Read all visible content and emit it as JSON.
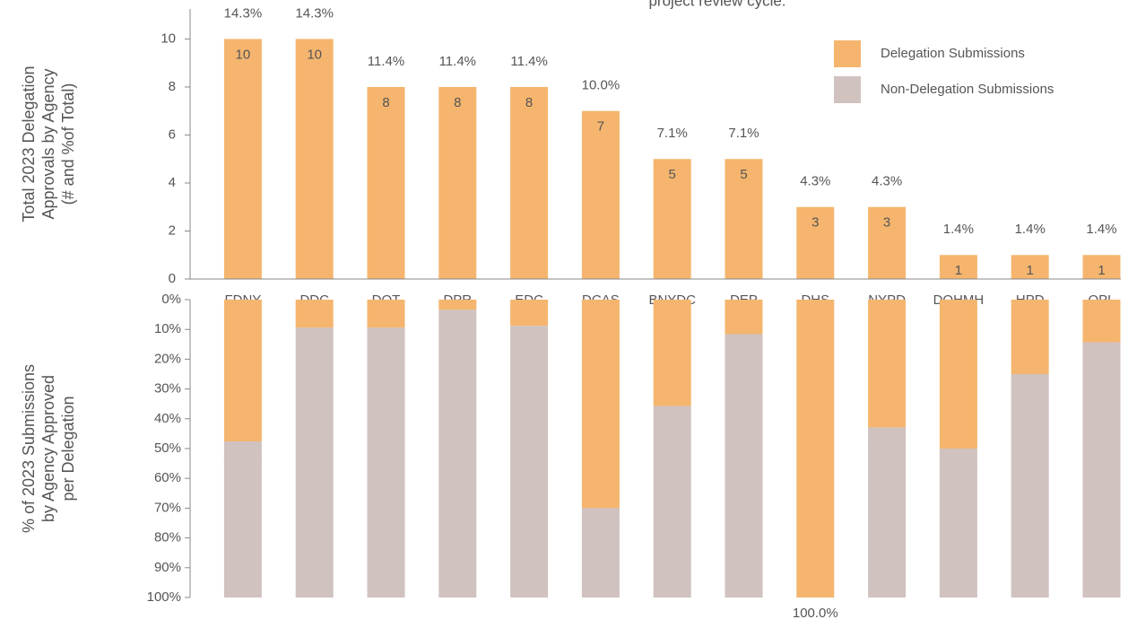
{
  "chart_data": [
    {
      "type": "bar",
      "annotation": "project review cycle.",
      "y_label": [
        "Total 2023 Delegation",
        "Approvals by Agency",
        "(# and %of Total)"
      ],
      "categories": [
        "FDNY",
        "DDC",
        "DOT",
        "DPR",
        "EDC",
        "DCAS",
        "BNYDC",
        "DEP",
        "DHS",
        "NYPD",
        "DOHMH",
        "HPD",
        "QPL"
      ],
      "values": [
        10,
        10,
        8,
        8,
        8,
        7,
        5,
        5,
        3,
        3,
        1,
        1,
        1
      ],
      "percent_labels": [
        "14.3%",
        "14.3%",
        "11.4%",
        "11.4%",
        "11.4%",
        "10.0%",
        "7.1%",
        "7.1%",
        "4.3%",
        "4.3%",
        "1.4%",
        "1.4%",
        "1.4%"
      ],
      "color": "#f5b56e",
      "ylim": [
        0,
        11.25
      ],
      "yticks": [
        0,
        2,
        4,
        6,
        8,
        10
      ]
    },
    {
      "type": "stacked_bar",
      "y_label": [
        "% of 2023 Submissions",
        "by Agency Approved",
        "per Delegation"
      ],
      "series": [
        {
          "name": "Delegation Submissions",
          "color": "#f5b56e",
          "values": [
            47.6,
            9.4,
            9.4,
            3.4,
            8.8,
            70.0,
            35.7,
            11.6,
            100.0,
            42.9,
            50.0,
            25.0,
            14.3
          ],
          "value_labels": [
            "47.6%",
            "9.4%",
            "9.4%",
            "3.4%",
            "8.8%",
            "70.0%",
            "35.7%",
            "11.6%",
            "100.0%",
            "42.9%",
            "50.0%",
            "25.0%",
            "14.3%"
          ]
        },
        {
          "name": "Non-Delegation Submissions",
          "color": "#d0c2bf",
          "values": [
            52.4,
            90.6,
            90.6,
            96.6,
            91.2,
            30.0,
            64.3,
            88.4,
            0,
            57.1,
            50.0,
            75.0,
            85.7
          ]
        }
      ],
      "ylim": [
        0,
        100
      ],
      "inverted": true,
      "legend": "upper right",
      "yticks": [
        {
          "value": 0,
          "label": "0%"
        },
        {
          "value": 10,
          "label": "10%"
        },
        {
          "value": 20,
          "label": "20%"
        },
        {
          "value": 30,
          "label": "30%"
        },
        {
          "value": 40,
          "label": "40%"
        },
        {
          "value": 50,
          "label": "50%"
        },
        {
          "value": 60,
          "label": "60%"
        },
        {
          "value": 70,
          "label": "70%"
        },
        {
          "value": 80,
          "label": "80%"
        },
        {
          "value": 90,
          "label": "90%"
        },
        {
          "value": 100,
          "label": "100%"
        }
      ]
    }
  ]
}
